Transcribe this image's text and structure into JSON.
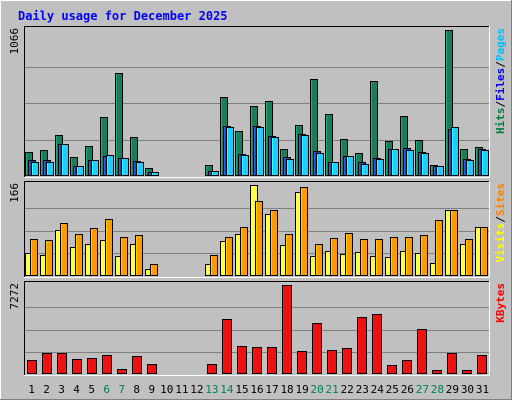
{
  "chart_data": {
    "type": "bar",
    "title": "Daily usage for December 2025",
    "categories": [
      "1",
      "2",
      "3",
      "4",
      "5",
      "6",
      "7",
      "8",
      "9",
      "10",
      "11",
      "12",
      "13",
      "14",
      "15",
      "16",
      "17",
      "18",
      "19",
      "20",
      "21",
      "22",
      "23",
      "24",
      "25",
      "26",
      "27",
      "28",
      "29",
      "30",
      "31"
    ],
    "weekend_days": [
      "6",
      "7",
      "13",
      "14",
      "20",
      "21",
      "27",
      "28"
    ],
    "panels": [
      {
        "name": "hits-files-pages",
        "max_label": "1066",
        "ymax": 1066,
        "legend": [
          {
            "text": "Pages",
            "color": "#00c0ff"
          },
          {
            "text": "/",
            "color": "#000000"
          },
          {
            "text": "Files",
            "color": "#0000ff"
          },
          {
            "text": "/",
            "color": "#000000"
          },
          {
            "text": "Hits",
            "color": "#008040"
          }
        ],
        "series": [
          {
            "name": "Hits",
            "color": "#1a7d5a",
            "values": [
              175,
              190,
              300,
              140,
              220,
              430,
              750,
              285,
              60,
              0,
              0,
              0,
              80,
              580,
              330,
              510,
              545,
              200,
              375,
              710,
              455,
              270,
              170,
              695,
              255,
              440,
              265,
              80,
              1066,
              195,
              210
            ]
          },
          {
            "name": "Files",
            "color": "#2244aa",
            "values": [
              115,
              115,
              235,
              75,
              115,
              145,
              130,
              110,
              30,
              0,
              0,
              0,
              40,
              365,
              160,
              365,
              290,
              140,
              310,
              180,
              105,
              145,
              100,
              130,
              195,
              205,
              175,
              75,
              345,
              125,
              195
            ]
          },
          {
            "name": "Pages",
            "color": "#22ccff",
            "values": [
              105,
              100,
              230,
              75,
              115,
              150,
              130,
              105,
              30,
              0,
              0,
              0,
              40,
              360,
              155,
              360,
              285,
              125,
              300,
              170,
              100,
              145,
              90,
              125,
              195,
              190,
              170,
              70,
              355,
              120,
              190
            ]
          }
        ]
      },
      {
        "name": "visits-sites",
        "max_label": "166",
        "ymax": 166,
        "legend": [
          {
            "text": "Sites",
            "color": "#ff8000"
          },
          {
            "text": "/",
            "color": "#000000"
          },
          {
            "text": "Visits",
            "color": "#ffff00"
          }
        ],
        "series": [
          {
            "name": "Visits",
            "color": "#ffff44",
            "values": [
              42,
              38,
              84,
              53,
              58,
              66,
              37,
              58,
              12,
              0,
              0,
              0,
              22,
              64,
              76,
              166,
              114,
              57,
              154,
              36,
              45,
              40,
              43,
              36,
              34,
              46,
              42,
              24,
              120,
              59,
              89
            ]
          },
          {
            "name": "Sites",
            "color": "#ff9900",
            "values": [
              68,
              66,
              96,
              76,
              88,
              104,
              72,
              74,
              21,
              0,
              0,
              0,
              39,
              72,
              90,
              137,
              121,
              77,
              162,
              58,
              69,
              78,
              68,
              68,
              72,
              72,
              75,
              102,
              120,
              68,
              89
            ]
          }
        ]
      },
      {
        "name": "kbytes",
        "max_label": "7272",
        "ymax": 7272,
        "legend": [
          {
            "text": "KBytes",
            "color": "#ff0000"
          }
        ],
        "series": [
          {
            "name": "KBytes",
            "color": "#ee1111",
            "values": [
              1150,
              1700,
              1700,
              1260,
              1320,
              1520,
              380,
              1440,
              780,
              0,
              0,
              0,
              780,
              4520,
              2260,
              2180,
              2180,
              7272,
              1860,
              4180,
              1980,
              2120,
              4650,
              4870,
              700,
              1160,
              3670,
              300,
              1750,
              330,
              1520
            ]
          }
        ]
      }
    ],
    "grid": true
  }
}
